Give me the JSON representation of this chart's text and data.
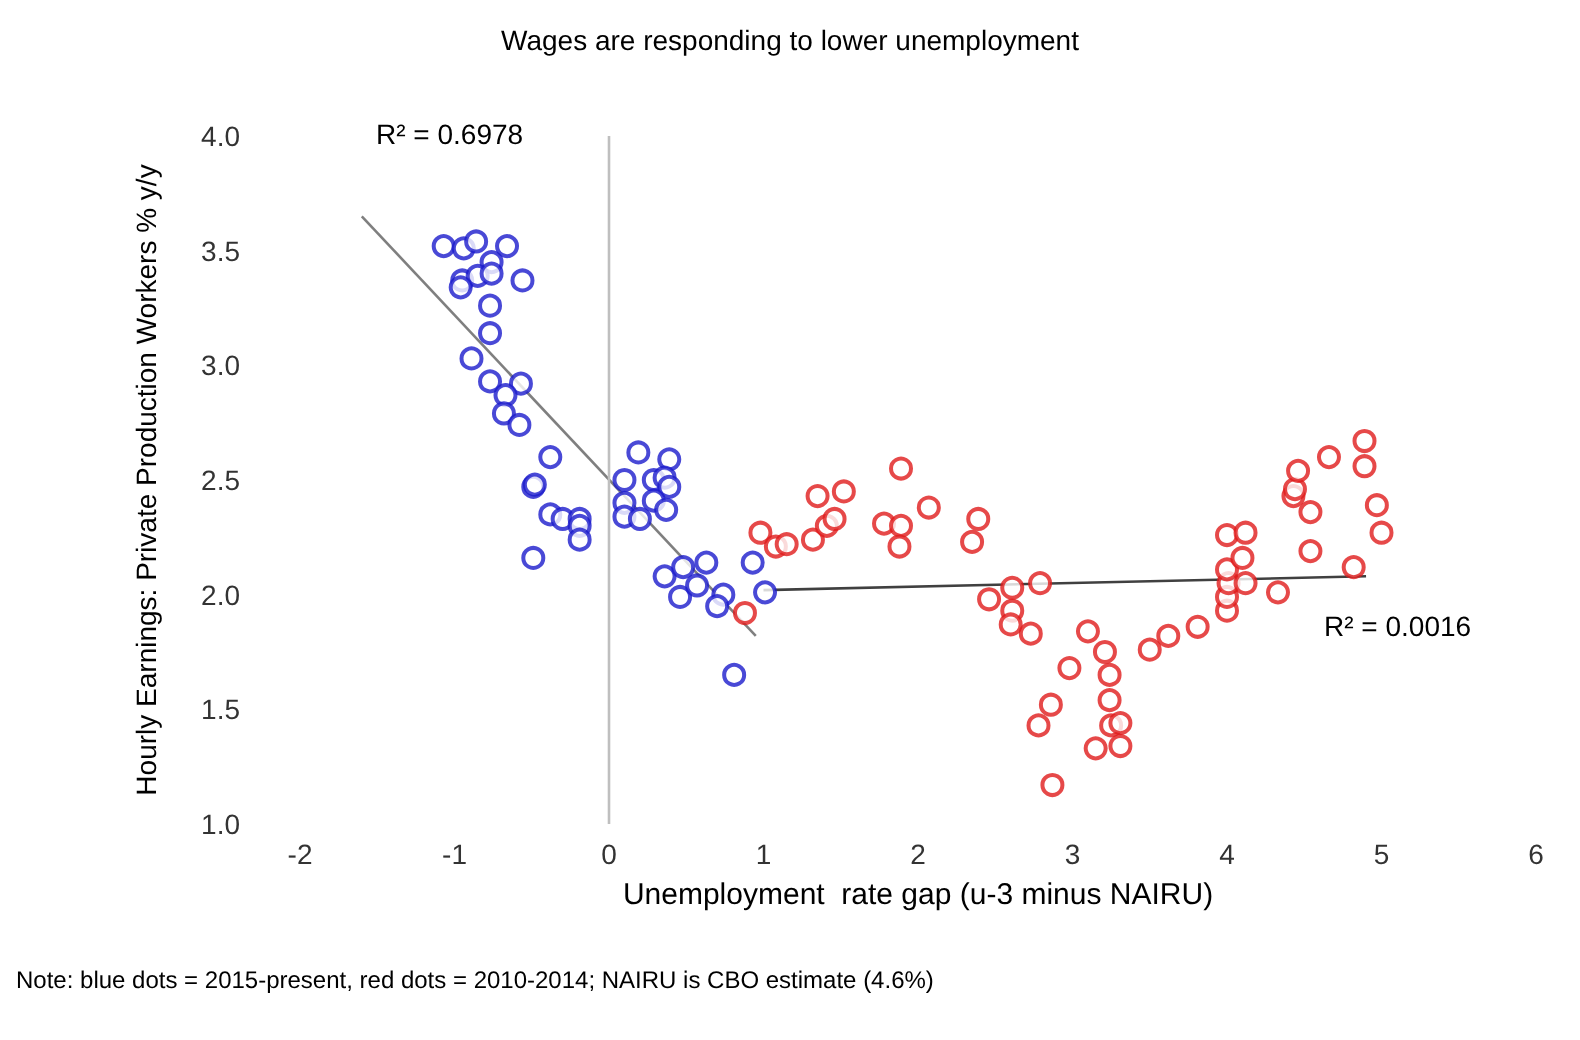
{
  "chart_data": {
    "type": "scatter",
    "title": "Wages are responding to lower unemployment",
    "xlabel": "Unemployment  rate gap (u-3 minus NAIRU)",
    "ylabel": "Hourly Earnings: Private Production Workers % y/y",
    "xlim": [
      -2,
      6
    ],
    "xticks": [
      -2,
      -1,
      0,
      1,
      2,
      3,
      4,
      5,
      6
    ],
    "ylim": [
      1,
      4
    ],
    "yticks": [
      {
        "value": 1,
        "label": "1.0"
      },
      {
        "value": 1.5,
        "label": "1.5"
      },
      {
        "value": 2,
        "label": "2.0"
      },
      {
        "value": 2.5,
        "label": "2.5"
      },
      {
        "value": 3,
        "label": "3.0"
      },
      {
        "value": 3.5,
        "label": "3.5"
      },
      {
        "value": 4,
        "label": "4.0"
      }
    ],
    "grid": false,
    "ref_lines": [
      {
        "axis": "x",
        "value": 0,
        "color": "#bfbfbf"
      }
    ],
    "annotations": [
      "R² = 0.6978",
      "R² = 0.0016",
      "Note: blue dots = 2015-present, red dots = 2010-2014; NAIRU is CBO estimate (4.6%)"
    ],
    "series": [
      {
        "marker": "circle",
        "color": "#1c1ccc",
        "x": [
          -1.07,
          -0.94,
          -0.86,
          -0.66,
          -0.76,
          -0.95,
          -0.85,
          -0.76,
          -0.96,
          -0.56,
          -0.77,
          -0.77,
          -0.89,
          -0.77,
          -0.57,
          -0.67,
          -0.68,
          -0.58,
          -0.38,
          -0.49,
          -0.48,
          -0.38,
          -0.3,
          -0.19,
          -0.19,
          -0.19,
          -0.49,
          0.19,
          0.39,
          0.1,
          0.29,
          0.36,
          0.39,
          0.1,
          0.29,
          0.1,
          0.2,
          0.37,
          0.36,
          0.48,
          0.63,
          0.46,
          0.57,
          0.74,
          0.7,
          0.81,
          0.93,
          1.01
        ],
        "values": [
          3.52,
          3.51,
          3.54,
          3.52,
          3.45,
          3.37,
          3.39,
          3.4,
          3.34,
          3.37,
          3.26,
          3.14,
          3.03,
          2.93,
          2.92,
          2.87,
          2.79,
          2.74,
          2.6,
          2.47,
          2.48,
          2.35,
          2.33,
          2.33,
          2.3,
          2.24,
          2.16,
          2.62,
          2.59,
          2.5,
          2.5,
          2.51,
          2.47,
          2.4,
          2.41,
          2.34,
          2.33,
          2.37,
          2.08,
          2.12,
          2.14,
          1.99,
          2.04,
          2.0,
          1.95,
          1.65,
          2.14,
          2.01
        ]
      },
      {
        "marker": "circle",
        "color": "#e01b1b",
        "x": [
          0.88,
          0.98,
          1.08,
          1.15,
          1.32,
          1.41,
          1.46,
          1.35,
          1.52,
          1.78,
          1.89,
          1.88,
          1.89,
          2.07,
          2.39,
          2.35,
          2.46,
          2.61,
          2.79,
          2.61,
          2.6,
          2.73,
          3.1,
          3.21,
          2.98,
          3.24,
          2.86,
          3.24,
          2.78,
          3.25,
          3.15,
          2.87,
          3.31,
          3.31,
          3.5,
          3.62,
          3.81,
          4.0,
          4.0,
          4.01,
          4.12,
          4.0,
          4.1,
          4.0,
          4.12,
          4.33,
          4.54,
          4.82,
          4.54,
          4.43,
          4.44,
          4.46,
          4.66,
          4.89,
          4.89,
          4.97,
          5.0
        ],
        "values": [
          1.92,
          2.27,
          2.21,
          2.22,
          2.24,
          2.3,
          2.33,
          2.43,
          2.45,
          2.31,
          2.3,
          2.21,
          2.55,
          2.38,
          2.33,
          2.23,
          1.98,
          2.03,
          2.05,
          1.93,
          1.87,
          1.83,
          1.84,
          1.75,
          1.68,
          1.65,
          1.52,
          1.54,
          1.43,
          1.43,
          1.33,
          1.17,
          1.44,
          1.34,
          1.76,
          1.82,
          1.86,
          1.93,
          1.99,
          2.05,
          2.05,
          2.11,
          2.16,
          2.26,
          2.27,
          2.01,
          2.19,
          2.12,
          2.36,
          2.43,
          2.46,
          2.54,
          2.6,
          2.67,
          2.56,
          2.39,
          2.27
        ]
      },
      {
        "type": "line",
        "marker": "none",
        "color": "#7f7f7f",
        "x": [
          -1.6,
          0.95
        ],
        "values": [
          3.65,
          1.82
        ]
      },
      {
        "type": "line",
        "marker": "none",
        "color": "#404040",
        "x": [
          1.0,
          4.9
        ],
        "values": [
          2.02,
          2.08
        ]
      }
    ]
  }
}
